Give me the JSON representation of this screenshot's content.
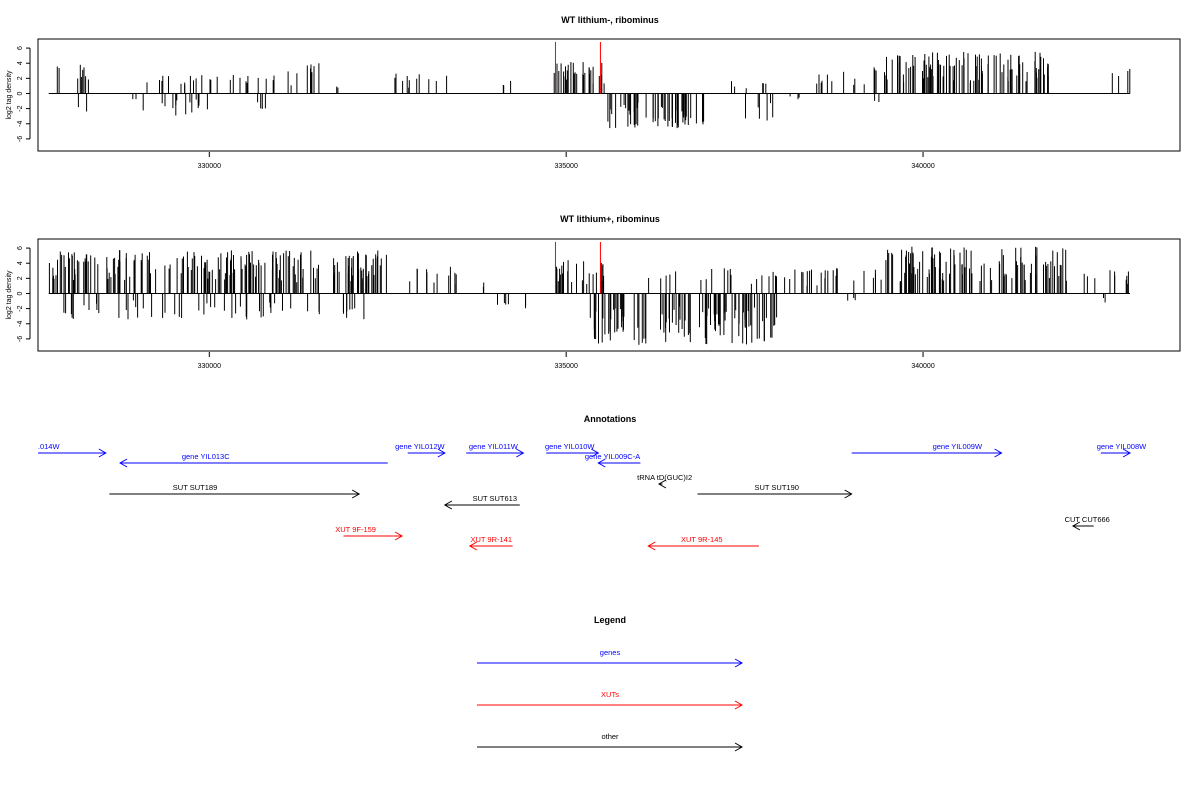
{
  "chart_data": [
    {
      "type": "bar",
      "title": "WT lithium-, ribominus",
      "ylabel": "log2 tag density",
      "xlabel": "",
      "xlim": [
        327600,
        343600
      ],
      "ylim": [
        -7.6,
        7.2
      ],
      "yticks": [
        -6,
        -4,
        -2,
        0,
        2,
        4,
        6
      ],
      "xticks": [
        330000,
        335000,
        340000
      ],
      "xtick_labels": [
        "330000",
        "335000",
        "340000"
      ],
      "grid": false,
      "bar_color": "#000000",
      "marker_color": "#ff0000",
      "marker_lines": [
        334850,
        335480
      ],
      "coverage": [
        {
          "x": [
            327750,
            328450
          ],
          "sign": 1,
          "max": 3.8
        },
        {
          "x": [
            328150,
            328300
          ],
          "sign": -1,
          "max": 2.6
        },
        {
          "x": [
            328900,
            329000
          ],
          "sign": -1,
          "max": 1.2
        },
        {
          "x": [
            329000,
            329800
          ],
          "sign": 1,
          "max": 2.5
        },
        {
          "x": [
            329050,
            330200
          ],
          "sign": -1,
          "max": 3.0
        },
        {
          "x": [
            329800,
            330900
          ],
          "sign": 1,
          "max": 2.5
        },
        {
          "x": [
            330650,
            330950
          ],
          "sign": -1,
          "max": 2.2
        },
        {
          "x": [
            330900,
            331700
          ],
          "sign": 1,
          "max": 4.0
        },
        {
          "x": [
            331700,
            331850
          ],
          "sign": 1,
          "max": 1.8
        },
        {
          "x": [
            332500,
            333350
          ],
          "sign": 1,
          "max": 2.8
        },
        {
          "x": [
            334100,
            334300
          ],
          "sign": 1,
          "max": 2.6
        },
        {
          "x": [
            334800,
            335550
          ],
          "sign": 1,
          "max": 4.2
        },
        {
          "x": [
            335550,
            336950
          ],
          "sign": -1,
          "max": 4.6
        },
        {
          "x": [
            337300,
            337800
          ],
          "sign": 1,
          "max": 2.0
        },
        {
          "x": [
            337500,
            338000
          ],
          "sign": -1,
          "max": 3.6
        },
        {
          "x": [
            338100,
            338350
          ],
          "sign": -1,
          "max": 1.0
        },
        {
          "x": [
            338500,
            339300
          ],
          "sign": 1,
          "max": 3.0
        },
        {
          "x": [
            339300,
            339400
          ],
          "sign": -1,
          "max": 1.4
        },
        {
          "x": [
            339300,
            341850
          ],
          "sign": 1,
          "max": 5.5
        },
        {
          "x": [
            342600,
            342900
          ],
          "sign": 1,
          "max": 3.3
        }
      ]
    },
    {
      "type": "bar",
      "title": "WT lithium+, ribominus",
      "ylabel": "log2 tag density",
      "xlabel": "",
      "xlim": [
        327600,
        343600
      ],
      "ylim": [
        -7.6,
        7.2
      ],
      "yticks": [
        -6,
        -4,
        -2,
        0,
        2,
        4,
        6
      ],
      "xticks": [
        330000,
        335000,
        340000
      ],
      "xtick_labels": [
        "330000",
        "335000",
        "340000"
      ],
      "grid": false,
      "bar_color": "#000000",
      "marker_color": "#ff0000",
      "marker_lines": [
        334850,
        335480
      ],
      "coverage": [
        {
          "x": [
            327750,
            332500
          ],
          "sign": 1,
          "max": 5.8
        },
        {
          "x": [
            327950,
            332300
          ],
          "sign": -1,
          "max": 3.5
        },
        {
          "x": [
            332650,
            333550
          ],
          "sign": 1,
          "max": 3.8
        },
        {
          "x": [
            333800,
            333900
          ],
          "sign": 1,
          "max": 1.8
        },
        {
          "x": [
            333950,
            334450
          ],
          "sign": -1,
          "max": 2.2
        },
        {
          "x": [
            334850,
            335550
          ],
          "sign": 1,
          "max": 4.5
        },
        {
          "x": [
            335300,
            337950
          ],
          "sign": -1,
          "max": 6.8
        },
        {
          "x": [
            336100,
            339350
          ],
          "sign": 1,
          "max": 3.5
        },
        {
          "x": [
            338850,
            339100
          ],
          "sign": -1,
          "max": 1.0
        },
        {
          "x": [
            339400,
            342050
          ],
          "sign": 1,
          "max": 6.2
        },
        {
          "x": [
            342100,
            342900
          ],
          "sign": 1,
          "max": 3.2
        },
        {
          "x": [
            342500,
            342600
          ],
          "sign": -1,
          "max": 1.4
        }
      ]
    }
  ],
  "annotations": {
    "title": "Annotations",
    "xlim": [
      327600,
      343600
    ],
    "items": [
      {
        "label": ".014W",
        "start": 327600,
        "end": 328550,
        "dir": "right",
        "row": 0,
        "color": "#0000ff",
        "label_x": 327750
      },
      {
        "label": "gene YIL013C",
        "start": 328750,
        "end": 332500,
        "dir": "left",
        "row": 1,
        "color": "#0000ff",
        "label_x": 329950
      },
      {
        "label": "gene YIL012W",
        "start": 332780,
        "end": 333300,
        "dir": "right",
        "row": 0,
        "color": "#0000ff",
        "label_x": 332950
      },
      {
        "label": "gene YIL011W",
        "start": 333600,
        "end": 334400,
        "dir": "right",
        "row": 0,
        "color": "#0000ff",
        "label_x": 333980
      },
      {
        "label": "gene YIL010W",
        "start": 334720,
        "end": 335450,
        "dir": "right",
        "row": 0,
        "color": "#0000ff",
        "label_x": 335050
      },
      {
        "label": "gene YIL009C-A",
        "start": 335450,
        "end": 336040,
        "dir": "left",
        "row": 1,
        "color": "#0000ff",
        "label_x": 335650
      },
      {
        "label": "tRNA tD(GUC)I2",
        "start": 336300,
        "end": 336350,
        "dir": "left",
        "row": 2,
        "color": "#000000",
        "label_x": 336380
      },
      {
        "label": "gene YIL009W",
        "start": 339000,
        "end": 341100,
        "dir": "right",
        "row": 0,
        "color": "#0000ff",
        "label_x": 340480
      },
      {
        "label": "gene YIL008W",
        "start": 342490,
        "end": 342900,
        "dir": "right",
        "row": 0,
        "color": "#0000ff",
        "label_x": 342780
      },
      {
        "label": "SUT SUT189",
        "start": 328600,
        "end": 332100,
        "dir": "right",
        "row": 3,
        "color": "#000000",
        "label_x": 329800
      },
      {
        "label": "SUT SUT613",
        "start": 333300,
        "end": 334350,
        "dir": "left",
        "row": 4,
        "color": "#000000",
        "label_x": 334000
      },
      {
        "label": "SUT SUT190",
        "start": 336840,
        "end": 339000,
        "dir": "right",
        "row": 3,
        "color": "#000000",
        "label_x": 337950
      },
      {
        "label": "XUT 9F-159",
        "start": 331880,
        "end": 332700,
        "dir": "right",
        "row": 5,
        "color": "#ff0000",
        "label_x": 332050
      },
      {
        "label": "XUT 9R-141",
        "start": 333650,
        "end": 334250,
        "dir": "left",
        "row": 6,
        "color": "#ff0000",
        "label_x": 333950
      },
      {
        "label": "XUT 9R-145",
        "start": 336150,
        "end": 337700,
        "dir": "left",
        "row": 6,
        "color": "#ff0000",
        "label_x": 336900
      },
      {
        "label": "CUT CUT666",
        "start": 342100,
        "end": 342390,
        "dir": "left",
        "row": 7,
        "color": "#000000",
        "label_x": 342300
      }
    ]
  },
  "legend": {
    "title": "Legend",
    "items": [
      {
        "label": "genes",
        "color": "#0000ff"
      },
      {
        "label": "XUTs",
        "color": "#ff0000"
      },
      {
        "label": "other",
        "color": "#000000"
      }
    ]
  }
}
